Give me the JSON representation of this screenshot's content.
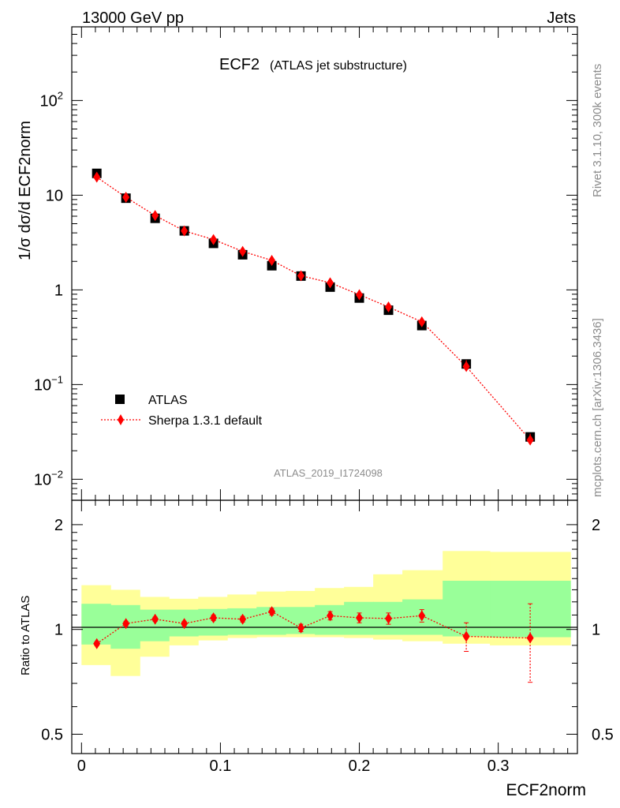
{
  "header": {
    "left": "13000 GeV pp",
    "right": "Jets"
  },
  "side": {
    "rivet": "Rivet 3.1.10,  300k events",
    "mcplots": "mcplots.cern.ch [arXiv:1306.3436]"
  },
  "colors": {
    "data": "#000000",
    "mc": "#ff0000",
    "band_inner": "#99ff99",
    "band_outer": "#ffff99"
  },
  "chart_data": [
    {
      "type": "scatter",
      "title": "ECF2",
      "subtitle": "(ATLAS jet substructure)",
      "watermark": "ATLAS_2019_I1724098",
      "ylabel": "1/σ dσ/d ECF2norm",
      "yscale": "log",
      "ylim": [
        0.006,
        600
      ],
      "xlim": [
        -0.007,
        0.357
      ],
      "yticks": [
        {
          "v": 0.01,
          "base": "10",
          "exp": "−2"
        },
        {
          "v": 0.1,
          "base": "10",
          "exp": "−1"
        },
        {
          "v": 1,
          "base": "1",
          "exp": ""
        },
        {
          "v": 10,
          "base": "10",
          "exp": ""
        },
        {
          "v": 100,
          "base": "10",
          "exp": "2"
        }
      ],
      "legend": {
        "position": "bottom-left",
        "entries": [
          "ATLAS",
          "Sherpa 1.3.1 default"
        ]
      },
      "x": [
        0.011,
        0.032,
        0.053,
        0.074,
        0.095,
        0.116,
        0.137,
        0.158,
        0.179,
        0.2,
        0.221,
        0.245,
        0.277,
        0.323
      ],
      "series": [
        {
          "name": "ATLAS",
          "marker": "square",
          "values": [
            17.0,
            9.3,
            5.7,
            4.2,
            3.1,
            2.35,
            1.8,
            1.4,
            1.07,
            0.82,
            0.61,
            0.42,
            0.165,
            0.028
          ]
        },
        {
          "name": "Sherpa 1.3.1 default",
          "marker": "diamond",
          "values": [
            15.5,
            9.5,
            6.1,
            4.2,
            3.4,
            2.55,
            2.05,
            1.41,
            1.19,
            0.89,
            0.66,
            0.46,
            0.155,
            0.026
          ]
        }
      ]
    },
    {
      "type": "line",
      "ylabel": "Ratio to ATLAS",
      "xlabel": "ECF2norm",
      "yscale": "log",
      "ylim": [
        0.44,
        2.35
      ],
      "xlim": [
        -0.007,
        0.357
      ],
      "xticks": [
        {
          "v": 0,
          "label": "0"
        },
        {
          "v": 0.1,
          "label": "0.1"
        },
        {
          "v": 0.2,
          "label": "0.2"
        },
        {
          "v": 0.3,
          "label": "0.3"
        }
      ],
      "yticks": [
        {
          "v": 0.5,
          "label": "0.5"
        },
        {
          "v": 1,
          "label": "1"
        },
        {
          "v": 2,
          "label": "2"
        }
      ],
      "bin_edges": [
        0,
        0.021,
        0.042,
        0.063,
        0.084,
        0.105,
        0.126,
        0.147,
        0.168,
        0.189,
        0.21,
        0.231,
        0.26,
        0.294,
        0.352
      ],
      "band_inner": {
        "lo": [
          0.905,
          0.88,
          0.925,
          0.955,
          0.96,
          0.965,
          0.965,
          0.97,
          0.965,
          0.965,
          0.965,
          0.965,
          0.955,
          0.95
        ],
        "hi": [
          1.185,
          1.175,
          1.14,
          1.14,
          1.145,
          1.15,
          1.16,
          1.16,
          1.175,
          1.2,
          1.2,
          1.22,
          1.38,
          1.38
        ]
      },
      "band_outer": {
        "lo": [
          0.79,
          0.735,
          0.835,
          0.9,
          0.93,
          0.945,
          0.95,
          0.95,
          0.95,
          0.945,
          0.935,
          0.925,
          0.91,
          0.9
        ],
        "hi": [
          1.34,
          1.3,
          1.24,
          1.225,
          1.24,
          1.26,
          1.285,
          1.29,
          1.315,
          1.325,
          1.44,
          1.48,
          1.68,
          1.67
        ]
      },
      "mc_ratio": [
        0.91,
        1.04,
        1.07,
        1.04,
        1.08,
        1.07,
        1.125,
        1.01,
        1.095,
        1.08,
        1.075,
        1.095,
        0.955,
        0.945
      ],
      "mc_ratio_err": [
        0.012,
        0.015,
        0.015,
        0.015,
        0.02,
        0.02,
        0.025,
        0.025,
        0.03,
        0.035,
        0.04,
        0.045,
        0.09,
        0.24
      ]
    }
  ]
}
